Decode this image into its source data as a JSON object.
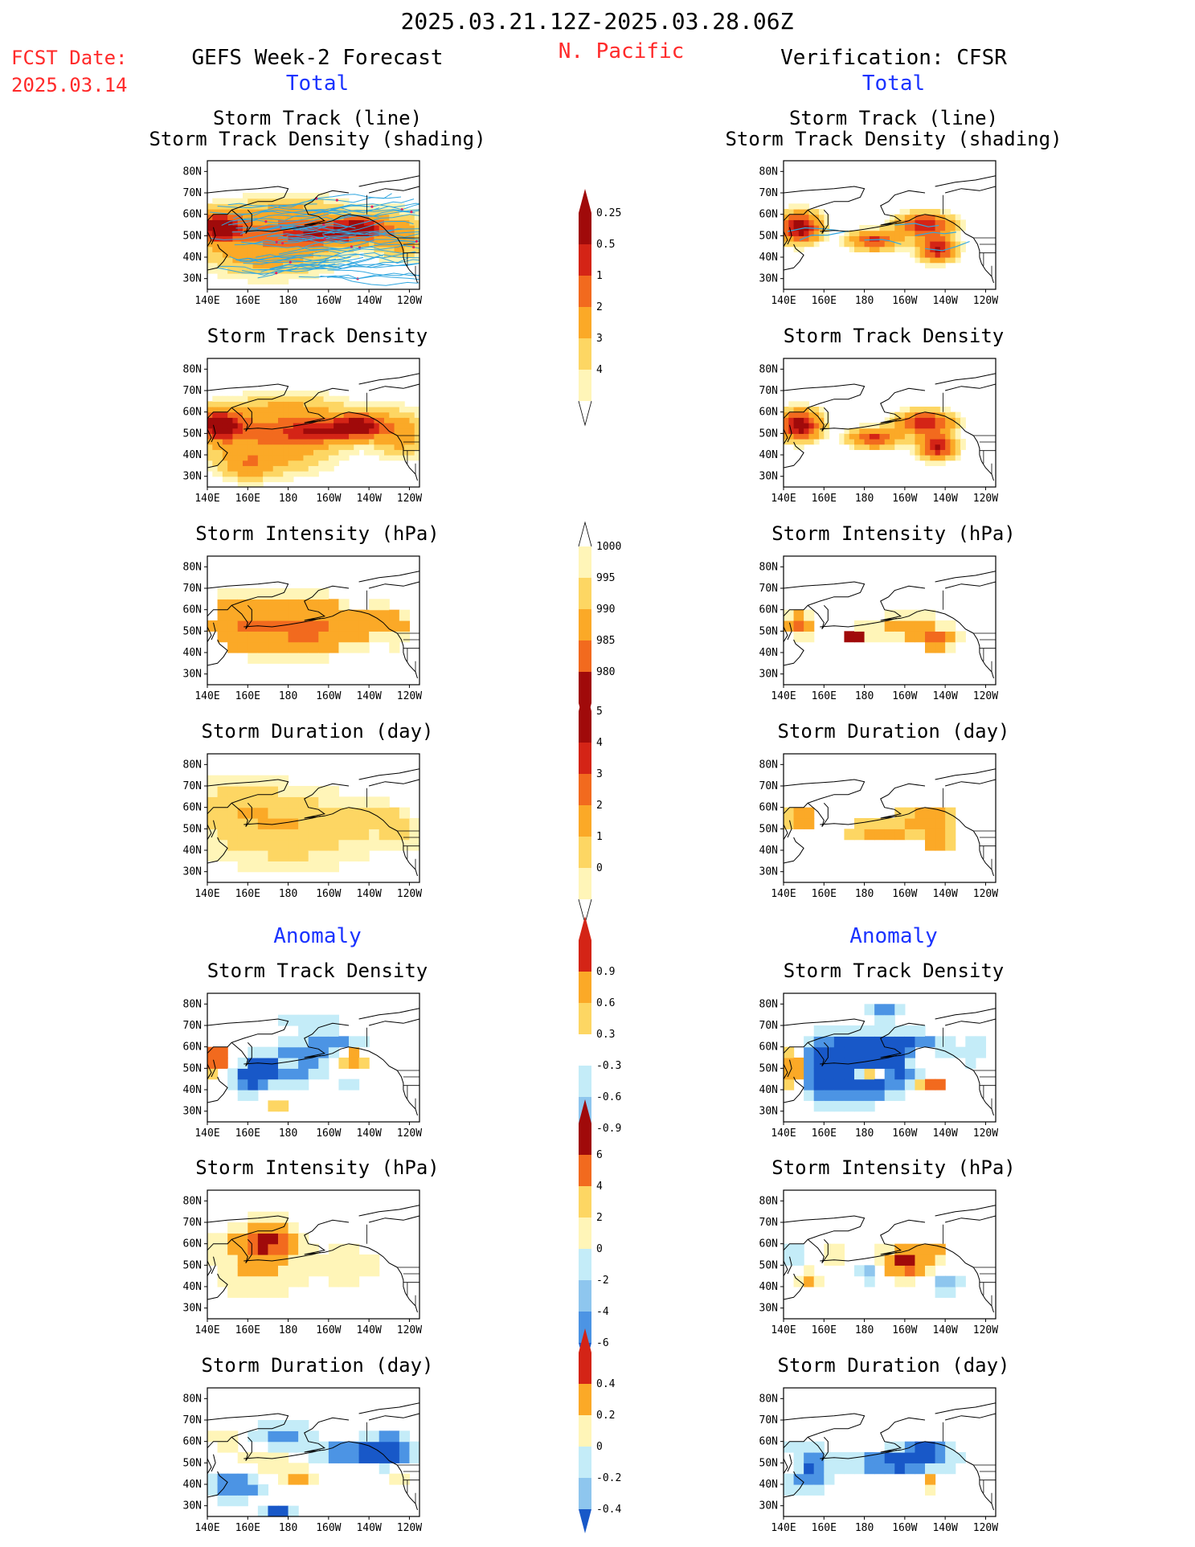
{
  "header": {
    "period": "2025.03.21.12Z-2025.03.28.06Z",
    "region": "N. Pacific",
    "fcst_label": "FCST Date:",
    "fcst_date": "2025.03.14",
    "left_title": "GEFS Week-2 Forecast",
    "right_title": "Verification: CFSR",
    "total_label": "Total",
    "anomaly_label": "Anomaly"
  },
  "colors": {
    "warm": [
      "#fff5b8",
      "#fdd663",
      "#fba927",
      "#f26a1e",
      "#d42416",
      "#a00a0a"
    ],
    "cold": [
      "#c4ecf8",
      "#8ec6ee",
      "#4c94e4",
      "#1858c8"
    ],
    "track_line": "#31a7e0",
    "track_dot": "#e02060",
    "blue_text": "#1a33ff",
    "red_text": "#ff2a2a"
  },
  "map_axes": {
    "lon_ticks": [
      "140E",
      "160E",
      "180",
      "160W",
      "140W",
      "120W"
    ],
    "lat_ticks": [
      "80N",
      "70N",
      "60N",
      "50N",
      "40N",
      "30N"
    ]
  },
  "panel_titles": {
    "track_line": "Storm Track (line)",
    "track_shading": "Storm Track Density (shading)",
    "density": "Storm Track Density",
    "intensity": "Storm Intensity (hPa)",
    "duration": "Storm Duration (day)"
  },
  "chart_data": [
    {
      "type": "heatmap",
      "id": "track-combined",
      "columns": [
        "GEFS Week-2 Forecast",
        "Verification: CFSR"
      ],
      "title": "Storm Track (line) / Storm Track Density (shading)",
      "legend": "colorbar 1 (0.25-4)",
      "note_values": "density maxima near 55N 145E and 50N 145W (forecast); near 55N 145E, 55N 155W, 45N 140W (verification)"
    },
    {
      "type": "heatmap",
      "id": "density-total",
      "title": "Storm Track Density",
      "colorbar": {
        "levels": [
          "0.25",
          "0.5",
          "1",
          "2",
          "3",
          "4"
        ]
      }
    },
    {
      "type": "heatmap",
      "id": "intensity-total",
      "title": "Storm Intensity (hPa)",
      "colorbar": {
        "levels": [
          "1000",
          "995",
          "990",
          "985",
          "980"
        ]
      }
    },
    {
      "type": "heatmap",
      "id": "duration-total",
      "title": "Storm Duration (day)",
      "colorbar": {
        "levels": [
          "5",
          "4",
          "3",
          "2",
          "1",
          "0"
        ]
      }
    },
    {
      "type": "heatmap",
      "id": "density-anomaly",
      "title": "Storm Track Density",
      "colorbar": {
        "levels": [
          "0.9",
          "0.6",
          "0.3",
          "-0.3",
          "-0.6",
          "-0.9"
        ]
      }
    },
    {
      "type": "heatmap",
      "id": "intensity-anomaly",
      "title": "Storm Intensity (hPa)",
      "colorbar": {
        "levels": [
          "6",
          "4",
          "2",
          "0",
          "-2",
          "-4",
          "-6"
        ]
      }
    },
    {
      "type": "heatmap",
      "id": "duration-anomaly",
      "title": "Storm Duration (day)",
      "colorbar": {
        "levels": [
          "0.4",
          "0.2",
          "0",
          "-0.2",
          "-0.4"
        ]
      }
    }
  ]
}
